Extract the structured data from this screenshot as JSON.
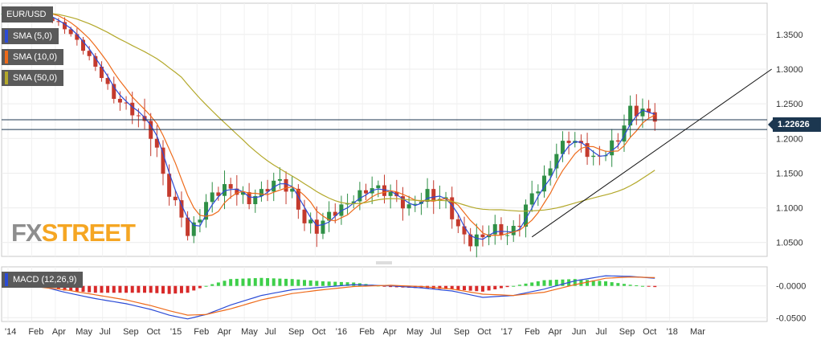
{
  "chart_data": [
    {
      "type": "candlestick",
      "title": "EUR/USD",
      "ylim": [
        1.03,
        1.395
      ],
      "yticks": [
        "1.3500",
        "1.3000",
        "1.2500",
        "1.2000",
        "1.1500",
        "1.1000",
        "1.0500"
      ],
      "last_price": "1.22626",
      "timeline_labels": [
        "'14",
        "Feb",
        "Apr",
        "May",
        "Jul",
        "Sep",
        "Oct",
        "'15",
        "Feb",
        "Apr",
        "May",
        "Jul",
        "Sep",
        "Oct",
        "'16",
        "Feb",
        "Apr",
        "May",
        "Jul",
        "Sep",
        "Oct",
        "'17",
        "Feb",
        "Apr",
        "Jun",
        "Jul",
        "Sep",
        "Oct",
        "'18",
        "Mar"
      ],
      "indicators": [
        {
          "name": "SMA (5,0)",
          "color": "#2b4bd6"
        },
        {
          "name": "SMA (10,0)",
          "color": "#ee6a1a"
        },
        {
          "name": "SMA (50,0)",
          "color": "#b3a82a"
        }
      ],
      "price_path": [
        [
          0,
          1.38
        ],
        [
          5,
          1.385
        ],
        [
          8,
          1.37
        ],
        [
          10,
          1.36
        ],
        [
          13,
          1.33
        ],
        [
          16,
          1.29
        ],
        [
          18,
          1.26
        ],
        [
          21,
          1.24
        ],
        [
          24,
          1.21
        ],
        [
          26,
          1.15
        ],
        [
          27,
          1.12
        ],
        [
          29,
          1.09
        ],
        [
          30,
          1.06
        ],
        [
          32,
          1.09
        ],
        [
          34,
          1.12
        ],
        [
          37,
          1.13
        ],
        [
          40,
          1.11
        ],
        [
          43,
          1.13
        ],
        [
          45,
          1.14
        ],
        [
          47,
          1.12
        ],
        [
          49,
          1.08
        ],
        [
          51,
          1.07
        ],
        [
          53,
          1.09
        ],
        [
          55,
          1.1
        ],
        [
          58,
          1.12
        ],
        [
          60,
          1.13
        ],
        [
          63,
          1.12
        ],
        [
          66,
          1.1
        ],
        [
          69,
          1.12
        ],
        [
          72,
          1.11
        ],
        [
          74,
          1.07
        ],
        [
          76,
          1.05
        ],
        [
          78,
          1.06
        ],
        [
          80,
          1.07
        ],
        [
          82,
          1.06
        ],
        [
          84,
          1.08
        ],
        [
          86,
          1.12
        ],
        [
          88,
          1.14
        ],
        [
          90,
          1.18
        ],
        [
          92,
          1.2
        ],
        [
          94,
          1.19
        ],
        [
          96,
          1.17
        ],
        [
          98,
          1.18
        ],
        [
          100,
          1.2
        ],
        [
          102,
          1.24
        ],
        [
          104,
          1.24
        ],
        [
          106,
          1.23
        ]
      ],
      "bands": [
        0.004,
        0.003,
        0.004,
        0.003,
        0.005,
        0.006,
        0.005,
        0.006,
        0.009,
        0.012,
        0.018,
        0.014,
        0.01,
        0.008,
        0.012,
        0.011,
        0.014,
        0.01,
        0.009,
        0.011,
        0.013,
        0.01,
        0.014,
        0.012,
        0.011,
        0.009,
        0.012,
        0.011,
        0.013,
        0.01,
        0.012,
        0.014,
        0.011,
        0.01,
        0.012,
        0.011,
        0.01,
        0.012,
        0.013,
        0.011,
        0.012,
        0.01,
        0.011,
        0.01,
        0.012,
        0.014,
        0.012,
        0.01
      ],
      "horizontal_lines": [
        1.227,
        1.213
      ],
      "trendline": [
        [
          86,
          1.058
        ],
        [
          125,
          1.3
        ]
      ]
    },
    {
      "type": "macd",
      "title": "MACD (12,26,9)",
      "ylim": [
        -0.056,
        0.03
      ],
      "yticks": [
        "-0.0000",
        "-0.0500"
      ],
      "macd_path": [
        [
          0,
          0.0
        ],
        [
          6,
          0.0
        ],
        [
          10,
          -0.01
        ],
        [
          15,
          -0.02
        ],
        [
          20,
          -0.028
        ],
        [
          24,
          -0.037
        ],
        [
          27,
          -0.046
        ],
        [
          30,
          -0.052
        ],
        [
          33,
          -0.045
        ],
        [
          37,
          -0.03
        ],
        [
          42,
          -0.015
        ],
        [
          47,
          -0.006
        ],
        [
          52,
          -0.002
        ],
        [
          57,
          0.002
        ],
        [
          63,
          0.0
        ],
        [
          68,
          -0.003
        ],
        [
          73,
          -0.008
        ],
        [
          78,
          -0.018
        ],
        [
          83,
          -0.015
        ],
        [
          88,
          -0.005
        ],
        [
          93,
          0.008
        ],
        [
          98,
          0.016
        ],
        [
          102,
          0.015
        ],
        [
          106,
          0.012
        ],
        [
          111,
          0.01
        ],
        [
          118,
          0.014
        ],
        [
          123,
          0.013
        ]
      ],
      "signal_path": [
        [
          0,
          -0.002
        ],
        [
          6,
          -0.002
        ],
        [
          10,
          -0.006
        ],
        [
          15,
          -0.014
        ],
        [
          20,
          -0.022
        ],
        [
          24,
          -0.031
        ],
        [
          27,
          -0.039
        ],
        [
          30,
          -0.046
        ],
        [
          33,
          -0.045
        ],
        [
          37,
          -0.036
        ],
        [
          42,
          -0.022
        ],
        [
          47,
          -0.012
        ],
        [
          52,
          -0.006
        ],
        [
          57,
          -0.001
        ],
        [
          63,
          0.001
        ],
        [
          68,
          -0.001
        ],
        [
          73,
          -0.005
        ],
        [
          78,
          -0.013
        ],
        [
          83,
          -0.015
        ],
        [
          88,
          -0.01
        ],
        [
          93,
          0.002
        ],
        [
          98,
          0.012
        ],
        [
          102,
          0.014
        ],
        [
          106,
          0.013
        ],
        [
          111,
          0.011
        ],
        [
          118,
          0.012
        ],
        [
          123,
          0.012
        ]
      ]
    }
  ],
  "watermark": {
    "fx": "FX",
    "street": "STREET"
  }
}
